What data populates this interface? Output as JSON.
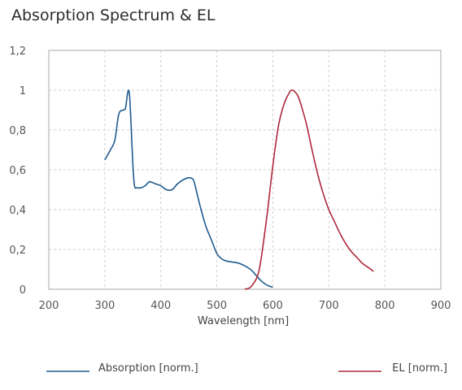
{
  "chart_data": {
    "type": "line",
    "title": "Absorption Spectrum & EL",
    "xlabel": "Wavelength [nm]",
    "ylabel": "",
    "xlim": [
      200,
      900
    ],
    "ylim": [
      0,
      1.2
    ],
    "x_ticks": [
      200,
      300,
      400,
      500,
      600,
      700,
      800,
      900
    ],
    "x_tick_labels": [
      "200",
      "300",
      "400",
      "500",
      "600",
      "700",
      "800",
      "900"
    ],
    "y_ticks": [
      0,
      0.2,
      0.4,
      0.6,
      0.8,
      1,
      1.2
    ],
    "y_tick_labels": [
      "0",
      "0,2",
      "0,4",
      "0,6",
      "0,8",
      "1",
      "1,2"
    ],
    "grid": "dashed",
    "legend_position": "bottom",
    "series": [
      {
        "name": "Absorption [norm.]",
        "color": "#1f5b8f",
        "x": [
          300,
          310,
          318,
          325,
          333,
          337,
          341,
          344,
          347,
          350,
          353,
          357,
          365,
          372,
          380,
          390,
          400,
          410,
          420,
          430,
          440,
          450,
          458,
          463,
          470,
          480,
          490,
          500,
          510,
          520,
          540,
          560,
          570,
          580,
          590,
          600
        ],
        "y": [
          0.65,
          0.7,
          0.75,
          0.88,
          0.9,
          0.91,
          0.99,
          0.98,
          0.82,
          0.63,
          0.52,
          0.51,
          0.51,
          0.52,
          0.54,
          0.53,
          0.52,
          0.5,
          0.5,
          0.53,
          0.55,
          0.56,
          0.55,
          0.5,
          0.42,
          0.32,
          0.25,
          0.18,
          0.15,
          0.14,
          0.13,
          0.1,
          0.07,
          0.04,
          0.02,
          0.01
        ]
      },
      {
        "name": "EL [norm.]",
        "color": "#b0283c",
        "x": [
          550,
          560,
          570,
          575,
          580,
          590,
          600,
          610,
          620,
          630,
          635,
          640,
          645,
          650,
          660,
          670,
          680,
          690,
          700,
          710,
          720,
          730,
          740,
          750,
          760,
          770,
          780
        ],
        "y": [
          0.0,
          0.01,
          0.05,
          0.09,
          0.17,
          0.38,
          0.62,
          0.82,
          0.93,
          0.99,
          1.0,
          0.99,
          0.97,
          0.93,
          0.83,
          0.7,
          0.58,
          0.48,
          0.4,
          0.34,
          0.28,
          0.23,
          0.19,
          0.16,
          0.13,
          0.11,
          0.09
        ]
      }
    ]
  }
}
